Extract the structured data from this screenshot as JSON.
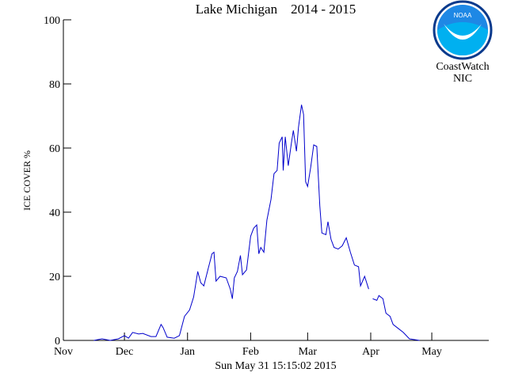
{
  "chart_data": {
    "type": "line",
    "title": "Lake Michigan    2014 - 2015",
    "x_label": "Sun May 31 15:15:02 2015",
    "y_label": "ICE COVER %",
    "annotations": [
      "CoastWatch",
      "NIC"
    ],
    "logo_text": "NOAA",
    "xlim": [
      0,
      209
    ],
    "xticks": [
      {
        "value": 0,
        "label": "Nov"
      },
      {
        "value": 30,
        "label": "Dec"
      },
      {
        "value": 61,
        "label": "Jan"
      },
      {
        "value": 92,
        "label": "Feb"
      },
      {
        "value": 120,
        "label": "Mar"
      },
      {
        "value": 151,
        "label": "Apr"
      },
      {
        "value": 181,
        "label": "May"
      }
    ],
    "ylim": [
      0,
      100
    ],
    "yticks": [
      0,
      20,
      40,
      60,
      80,
      100
    ],
    "series": [
      {
        "color": "#0000cc",
        "x": [
          15,
          19,
          23,
          27,
          30,
          32,
          34,
          37,
          39,
          43,
          45.5,
          48,
          49,
          51,
          54.5,
          57,
          59.5,
          62,
          64,
          66,
          67.5,
          69,
          71,
          73,
          74,
          75,
          77,
          80,
          82,
          83,
          84,
          85.5,
          87,
          88,
          90,
          92,
          93.5,
          95,
          96,
          97,
          98.5,
          100,
          102,
          103.5,
          105,
          106,
          107.5,
          108,
          109,
          110.5,
          112,
          113,
          114.5,
          115.5,
          117,
          118,
          119,
          120,
          121.5,
          123,
          124.5,
          126,
          127,
          129,
          130,
          131.5,
          133,
          135,
          137,
          139,
          141,
          143,
          145,
          146,
          148,
          150,
          151,
          152,
          154,
          155,
          157,
          158.5,
          160.5,
          162,
          165,
          167,
          170,
          175
        ],
        "values": [
          0,
          0.5,
          0,
          0.5,
          1.5,
          0.7,
          2.5,
          2,
          2.2,
          1.2,
          1.2,
          5,
          4,
          1,
          0.7,
          1.5,
          7.5,
          9.5,
          13.5,
          21.5,
          18,
          17,
          22,
          27,
          27.5,
          18.5,
          20,
          19.5,
          16,
          13,
          19.5,
          21.5,
          26.5,
          20.5,
          22,
          32.5,
          35,
          36,
          27,
          29,
          27.5,
          37.5,
          44,
          52,
          53,
          61.5,
          63.5,
          53,
          63.5,
          54.5,
          61.5,
          65.5,
          59,
          66.5,
          73.5,
          70.5,
          49.5,
          48,
          54,
          61,
          60.5,
          42,
          33.5,
          33,
          37,
          31.5,
          29,
          28.5,
          29.5,
          32,
          27.5,
          23.5,
          23,
          17,
          20,
          16,
          null,
          13,
          12.5,
          14,
          13,
          8.5,
          7.5,
          5,
          3.5,
          2.5,
          0.5,
          0
        ]
      }
    ]
  }
}
